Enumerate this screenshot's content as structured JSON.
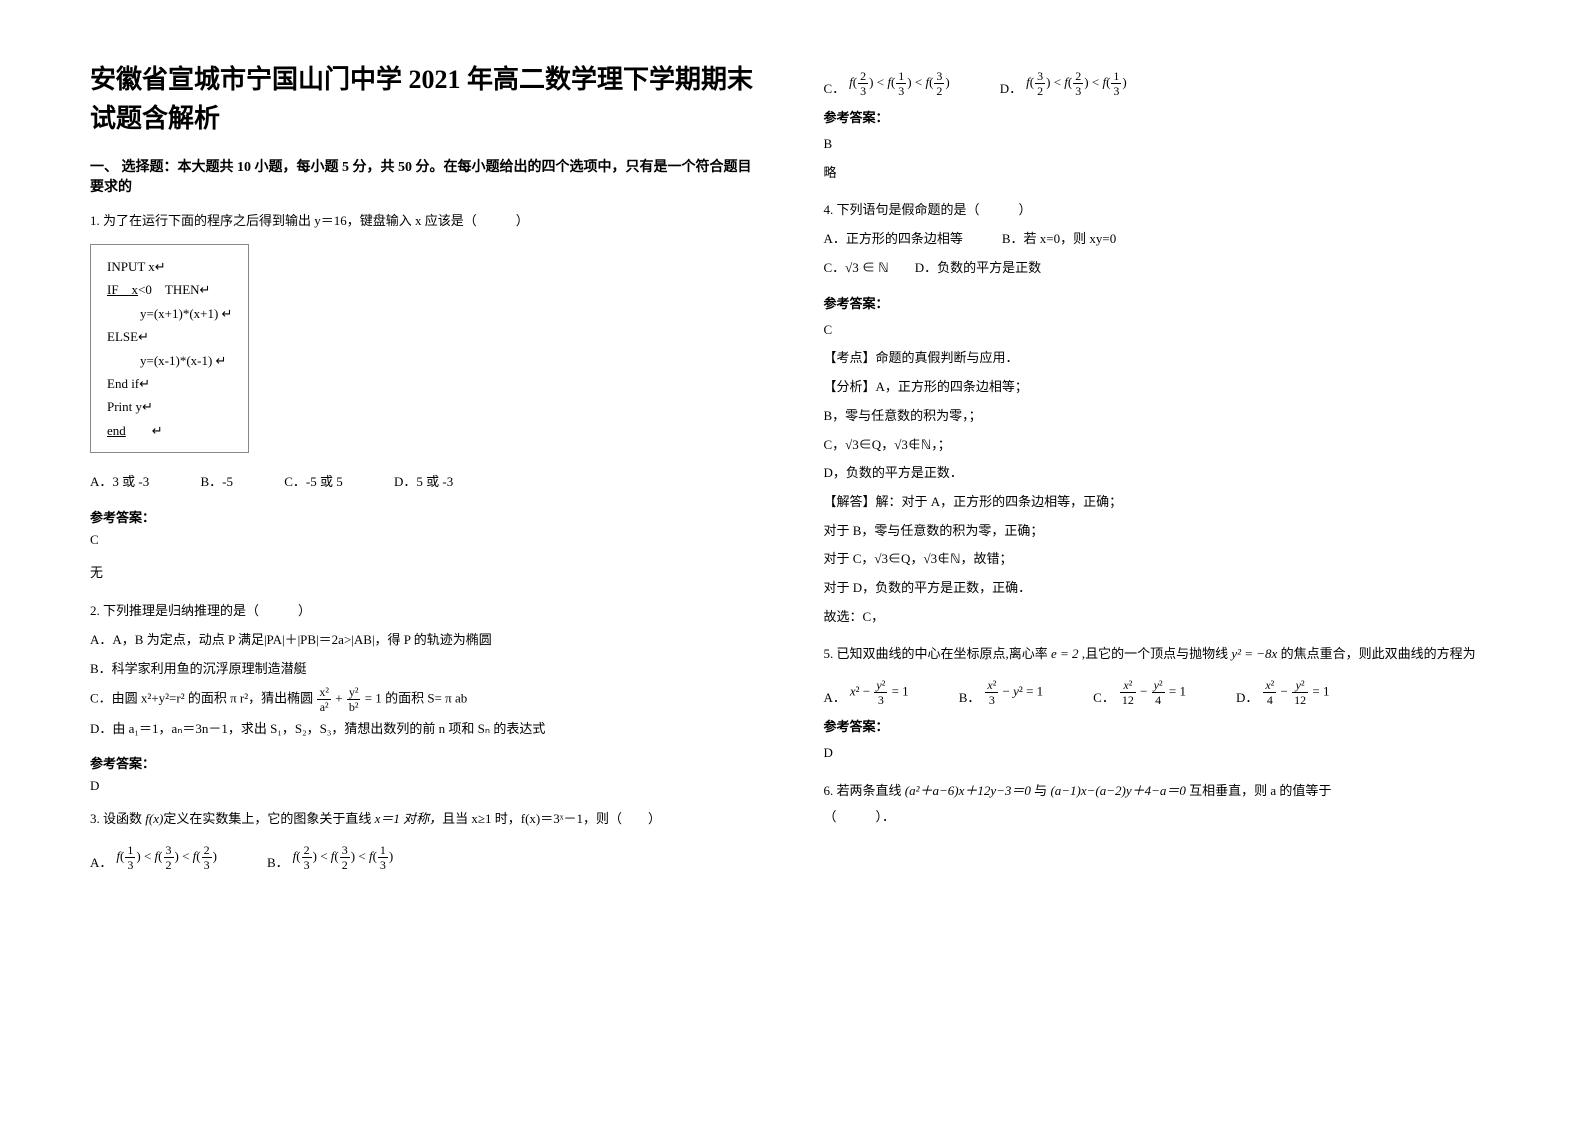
{
  "title": "安徽省宣城市宁国山门中学 2021 年高二数学理下学期期末试题含解析",
  "section1": "一、 选择题：本大题共 10 小题，每小题 5 分，共 50 分。在每小题给出的四个选项中，只有是一个符合题目要求的",
  "q1": {
    "stem": "1. 为了在运行下面的程序之后得到输出 y＝16，键盘输入 x 应该是（　　　）",
    "code": [
      "INPUT x↵",
      "IF　x<0　THEN↵",
      "　y=(x+1)*(x+1)  ↵",
      "ELSE↵",
      "　y=(x-1)*(x-1)  ↵",
      "End if↵",
      "Print y↵",
      "end　　↵"
    ],
    "opts": {
      "A": "3 或 -3",
      "B": "-5",
      "C": "-5 或 5",
      "D": "5 或 -3"
    },
    "ansLabel": "参考答案：",
    "ans": "C",
    "extra": "无"
  },
  "q2": {
    "stem": "2. 下列推理是归纳推理的是（　　　）",
    "A": "A．A，B 为定点，动点 P 满足|PA|＋|PB|＝2a>|AB|，得 P 的轨迹为椭圆",
    "B": "B．科学家利用鱼的沉浮原理制造潜艇",
    "C_pre": "C．由圆 x²+y²=r² 的面积 π r²，猜出椭圆 ",
    "C_post": " 的面积 S= π ab",
    "D": "D．由 a₁＝1，aₙ＝3n－1，求出 S₁，S₂，S₃，猜想出数列的前 n 项和 Sₙ 的表达式",
    "ansLabel": "参考答案：",
    "ans": "D"
  },
  "q3": {
    "stem_pre": "3. 设函数 ",
    "stem_fx": "f(x)",
    "stem_mid": "定义在实数集上，它的图象关于直线 ",
    "stem_x1": "x＝1 对称，",
    "stem_post": "且当 x≥1 时，f(x)＝3ˣ－1，则（　　）"
  },
  "q3opts": {
    "A": "A．",
    "B": "B．",
    "C": "C．",
    "D": "D．"
  },
  "q3ans": {
    "label": "参考答案：",
    "val": "B",
    "extra": "略"
  },
  "q4": {
    "stem": "4. 下列语句是假命题的是（　　　）",
    "A": "A．正方形的四条边相等　　　B．若 x=0，则 xy=0",
    "C": "C．√3 ∈ ℕ　　D．负数的平方是正数",
    "ansLabel": "参考答案：",
    "ans": "C",
    "notes": [
      "【考点】命题的真假判断与应用．",
      "【分析】A，正方形的四条边相等；",
      "B，零与任意数的积为零，；",
      "C，√3∈Q，√3∉ℕ，；",
      "D，负数的平方是正数．",
      "【解答】解：对于 A，正方形的四条边相等，正确；",
      "对于 B，零与任意数的积为零，正确；",
      "对于 C，√3∈Q，√3∉ℕ，故错；",
      "对于 D，负数的平方是正数，正确．",
      "故选：C，"
    ]
  },
  "q5": {
    "stem_pre": "5. 已知双曲线的中心在坐标原点,离心率",
    "stem_e": "e = 2",
    "stem_mid": ",且它的一个顶点与抛物线",
    "stem_par": "y² = −8x",
    "stem_post": "的焦点重合，则此双曲线的方程为",
    "ansLabel": "参考答案：",
    "ans": "D"
  },
  "q6": {
    "stem_pre": "6. 若两条直线",
    "eq1": "(a²＋a−6)x＋12y−3＝0",
    "mid": " 与 ",
    "eq2": "(a−1)x−(a−2)y＋4−a＝0",
    "stem_post": "互相垂直，则 a 的值等于",
    "tail": "（　　　）．"
  },
  "chartStyle": {
    "background": "#ffffff",
    "text": "#000000",
    "border": "#888888",
    "titleFontSize": 26,
    "bodyFontSize": 13,
    "pageWidth": 1587,
    "pageHeight": 1122
  }
}
